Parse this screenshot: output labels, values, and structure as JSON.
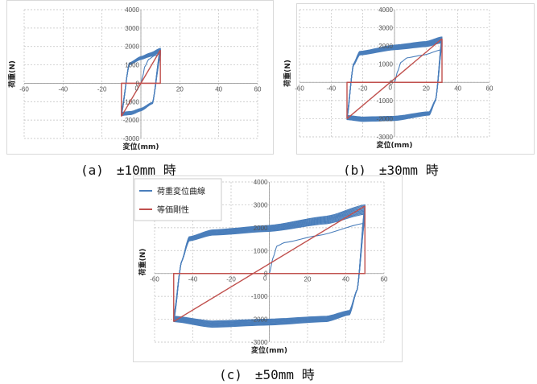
{
  "captions": [
    "(a)　±10mm 時",
    "(b)　±30mm 時",
    "(c)　±50mm 時"
  ],
  "legend": {
    "hysteresis": "荷重変位曲線",
    "equivalent": "等価剛性"
  },
  "colors": {
    "hysteresis": "#4a7ebb",
    "equivalent": "#c0504d",
    "grid": "#bfbfbf",
    "frame": "#d9d9d9"
  },
  "chart_data": [
    {
      "type": "line",
      "id": "a",
      "xlabel": "変位(mm)",
      "ylabel": "荷重(N)",
      "xlim": [
        -60,
        60
      ],
      "ylim": [
        -3000,
        4000
      ],
      "xticks": [
        -60,
        -40,
        -20,
        0,
        20,
        40,
        60
      ],
      "yticks": [
        -3000,
        -2000,
        -1000,
        0,
        1000,
        2000,
        3000,
        4000
      ],
      "amplitude": 10,
      "series": [
        {
          "name": "荷重変位曲線",
          "type": "hysteresis",
          "loop_count": 10,
          "initial": [
            [
              0,
              0
            ],
            [
              1,
              400
            ],
            [
              2,
              900
            ],
            [
              4,
              1300
            ],
            [
              7,
              1500
            ],
            [
              10,
              1600
            ]
          ],
          "upper_branch": [
            [
              -10,
              -1700
            ],
            [
              -6,
              1100
            ],
            [
              0,
              1450
            ],
            [
              5,
              1650
            ],
            [
              10,
              1900
            ]
          ],
          "lower_branch": [
            [
              10,
              1900
            ],
            [
              6,
              -1100
            ],
            [
              0,
              -1500
            ],
            [
              -5,
              -1700
            ],
            [
              -10,
              -1750
            ]
          ]
        },
        {
          "name": "等価剛性",
          "type": "line",
          "x": [
            -10,
            10
          ],
          "y": [
            -1800,
            1800
          ],
          "box": {
            "x": [
              -10,
              10
            ],
            "y": [
              -1800,
              1800
            ]
          }
        }
      ]
    },
    {
      "type": "line",
      "id": "b",
      "xlabel": "変位(mm)",
      "ylabel": "荷重(N)",
      "xlim": [
        -60,
        60
      ],
      "ylim": [
        -3000,
        4000
      ],
      "xticks": [
        -60,
        -40,
        -20,
        0,
        20,
        40,
        60
      ],
      "yticks": [
        -3000,
        -2000,
        -1000,
        0,
        1000,
        2000,
        3000,
        4000
      ],
      "amplitude": 30,
      "series": [
        {
          "name": "荷重変位曲線",
          "type": "hysteresis",
          "loop_count": 10,
          "initial": [
            [
              0,
              0
            ],
            [
              2,
              600
            ],
            [
              4,
              1100
            ],
            [
              8,
              1350
            ],
            [
              18,
              1500
            ],
            [
              30,
              1800
            ]
          ],
          "upper_branch": [
            [
              -30,
              -2000
            ],
            [
              -26,
              1000
            ],
            [
              -22,
              1700
            ],
            [
              0,
              2050
            ],
            [
              20,
              2250
            ],
            [
              30,
              2500
            ]
          ],
          "lower_branch": [
            [
              30,
              2500
            ],
            [
              26,
              -1000
            ],
            [
              22,
              -1800
            ],
            [
              0,
              -2100
            ],
            [
              -20,
              -2150
            ],
            [
              -30,
              -2050
            ]
          ]
        },
        {
          "name": "等価剛性",
          "type": "line",
          "x": [
            -30,
            30
          ],
          "y": [
            -2000,
            2400
          ],
          "box": {
            "x": [
              -30,
              30
            ],
            "y": [
              -2000,
              2400
            ]
          }
        }
      ]
    },
    {
      "type": "line",
      "id": "c",
      "xlabel": "変位(mm)",
      "ylabel": "荷重(N)",
      "xlim": [
        -60,
        60
      ],
      "ylim": [
        -3000,
        4000
      ],
      "xticks": [
        -60,
        -40,
        -20,
        0,
        20,
        40,
        60
      ],
      "yticks": [
        -3000,
        -2000,
        -1000,
        0,
        1000,
        2000,
        3000,
        4000
      ],
      "amplitude": 50,
      "series": [
        {
          "name": "荷重変位曲線",
          "type": "hysteresis",
          "loop_count": 10,
          "initial": [
            [
              0,
              0
            ],
            [
              2,
              700
            ],
            [
              4,
              1200
            ],
            [
              8,
              1350
            ],
            [
              25,
              1650
            ],
            [
              50,
              2200
            ]
          ],
          "upper_branch": [
            [
              -50,
              -2100
            ],
            [
              -46,
              500
            ],
            [
              -42,
              1600
            ],
            [
              -30,
              1900
            ],
            [
              0,
              2100
            ],
            [
              30,
              2500
            ],
            [
              50,
              3000
            ]
          ],
          "lower_branch": [
            [
              50,
              3000
            ],
            [
              46,
              -700
            ],
            [
              42,
              -1800
            ],
            [
              30,
              -2100
            ],
            [
              0,
              -2250
            ],
            [
              -30,
              -2350
            ],
            [
              -50,
              -2100
            ]
          ]
        },
        {
          "name": "等価剛性",
          "type": "line",
          "x": [
            -50,
            50
          ],
          "y": [
            -2100,
            2950
          ],
          "box": {
            "x": [
              -50,
              50
            ],
            "y": [
              -2100,
              2950
            ]
          }
        }
      ]
    }
  ]
}
